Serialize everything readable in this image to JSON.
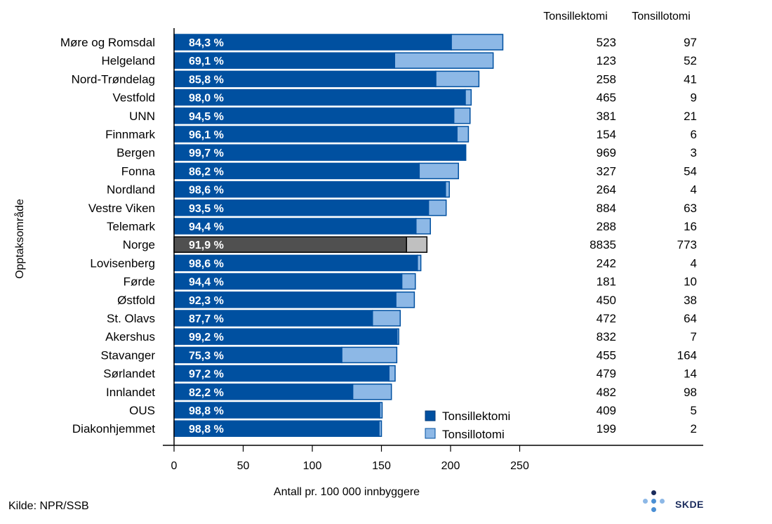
{
  "chart_data": {
    "type": "bar",
    "orientation": "horizontal",
    "stacked": true,
    "ylabel": "Opptaksområde",
    "xlabel": "Antall pr. 100 000 innbyggere",
    "xlim": [
      0,
      250
    ],
    "xticks": [
      0,
      50,
      100,
      150,
      200,
      250
    ],
    "legend": [
      "Tonsillektomi",
      "Tonsillotomi"
    ],
    "legend_position": "bottom-right",
    "column_headers": [
      "Tonsillektomi",
      "Tonsillotomi"
    ],
    "colors": {
      "tonsillektomi": "#0050a0",
      "tonsillotomi": "#8db8e6",
      "norge_tonsillektomi": "#505050",
      "norge_tonsillotomi": "#c0c0c0"
    },
    "highlight": "Norge",
    "rows": [
      {
        "name": "Møre og Romsdal",
        "pct": "84,3 %",
        "ektomi_rate": 200.5,
        "otomi_rate": 37.3,
        "ektomi_n": "523",
        "otomi_n": "97"
      },
      {
        "name": "Helgeland",
        "pct": "69,1 %",
        "ektomi_rate": 159.5,
        "otomi_rate": 71.3,
        "ektomi_n": "123",
        "otomi_n": "52"
      },
      {
        "name": "Nord-Trøndelag",
        "pct": "85,8 %",
        "ektomi_rate": 189.3,
        "otomi_rate": 31.2,
        "ektomi_n": "258",
        "otomi_n": "41"
      },
      {
        "name": "Vestfold",
        "pct": "98,0 %",
        "ektomi_rate": 210.6,
        "otomi_rate": 4.3,
        "ektomi_n": "465",
        "otomi_n": "9"
      },
      {
        "name": "UNN",
        "pct": "94,5 %",
        "ektomi_rate": 202.3,
        "otomi_rate": 11.8,
        "ektomi_n": "381",
        "otomi_n": "21"
      },
      {
        "name": "Finnmark",
        "pct": "96,1 %",
        "ektomi_rate": 204.6,
        "otomi_rate": 8.3,
        "ektomi_n": "154",
        "otomi_n": "6"
      },
      {
        "name": "Bergen",
        "pct": "99,7 %",
        "ektomi_rate": 210.4,
        "otomi_rate": 0.6,
        "ektomi_n": "969",
        "otomi_n": "3"
      },
      {
        "name": "Fonna",
        "pct": "86,2 %",
        "ektomi_rate": 177.3,
        "otomi_rate": 28.4,
        "ektomi_n": "327",
        "otomi_n": "54"
      },
      {
        "name": "Nordland",
        "pct": "98,6 %",
        "ektomi_rate": 196.3,
        "otomi_rate": 2.8,
        "ektomi_n": "264",
        "otomi_n": "4"
      },
      {
        "name": "Vestre Viken",
        "pct": "93,5 %",
        "ektomi_rate": 184.0,
        "otomi_rate": 12.8,
        "ektomi_n": "884",
        "otomi_n": "63"
      },
      {
        "name": "Telemark",
        "pct": "94,4 %",
        "ektomi_rate": 175.0,
        "otomi_rate": 10.4,
        "ektomi_n": "288",
        "otomi_n": "16"
      },
      {
        "name": "Norge",
        "pct": "91,9 %",
        "ektomi_rate": 168.1,
        "otomi_rate": 14.8,
        "ektomi_n": "8835",
        "otomi_n": "773"
      },
      {
        "name": "Lovisenberg",
        "pct": "98,6 %",
        "ektomi_rate": 176.0,
        "otomi_rate": 2.5,
        "ektomi_n": "242",
        "otomi_n": "4"
      },
      {
        "name": "Førde",
        "pct": "94,4 %",
        "ektomi_rate": 164.7,
        "otomi_rate": 9.8,
        "ektomi_n": "181",
        "otomi_n": "10"
      },
      {
        "name": "Østfold",
        "pct": "92,3 %",
        "ektomi_rate": 160.4,
        "otomi_rate": 13.4,
        "ektomi_n": "450",
        "otomi_n": "38"
      },
      {
        "name": "St. Olavs",
        "pct": "87,7 %",
        "ektomi_rate": 143.5,
        "otomi_rate": 20.1,
        "ektomi_n": "472",
        "otomi_n": "64"
      },
      {
        "name": "Akershus",
        "pct": "99,2 %",
        "ektomi_rate": 161.2,
        "otomi_rate": 1.3,
        "ektomi_n": "832",
        "otomi_n": "7"
      },
      {
        "name": "Stavanger",
        "pct": "75,3 %",
        "ektomi_rate": 121.3,
        "otomi_rate": 39.8,
        "ektomi_n": "455",
        "otomi_n": "164"
      },
      {
        "name": "Sørlandet",
        "pct": "97,2 %",
        "ektomi_rate": 155.4,
        "otomi_rate": 4.5,
        "ektomi_n": "479",
        "otomi_n": "14"
      },
      {
        "name": "Innlandet",
        "pct": "82,2 %",
        "ektomi_rate": 129.2,
        "otomi_rate": 28.0,
        "ektomi_n": "482",
        "otomi_n": "98"
      },
      {
        "name": "OUS",
        "pct": "98,8 %",
        "ektomi_rate": 148.7,
        "otomi_rate": 1.8,
        "ektomi_n": "409",
        "otomi_n": "5"
      },
      {
        "name": "Diakonhjemmet",
        "pct": "98,8 %",
        "ektomi_rate": 148.2,
        "otomi_rate": 1.8,
        "ektomi_n": "199",
        "otomi_n": "2"
      }
    ]
  },
  "footer": {
    "source": "Kilde: NPR/SSB",
    "logo_text": "SKDE"
  }
}
